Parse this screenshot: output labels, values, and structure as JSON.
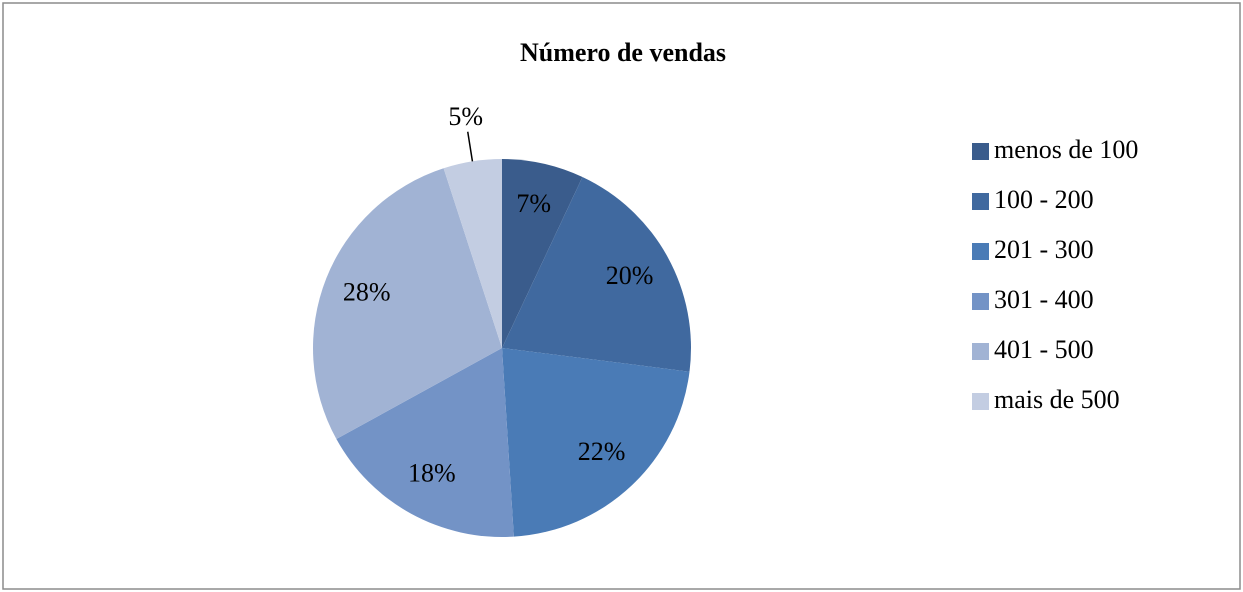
{
  "chart_data": {
    "type": "pie",
    "title": "Número de vendas",
    "categories": [
      "menos de 100",
      "100 - 200",
      "201 - 300",
      "301 - 400",
      "401 - 500",
      "mais de 500"
    ],
    "values": [
      7,
      20,
      22,
      18,
      28,
      5
    ],
    "value_labels": [
      "7%",
      "20%",
      "22%",
      "18%",
      "28%",
      "5%"
    ],
    "colors": [
      "#3a5c8c",
      "#40699f",
      "#4a7bb6",
      "#7393c6",
      "#a1b3d4",
      "#c3cde2"
    ],
    "legend": "right"
  }
}
